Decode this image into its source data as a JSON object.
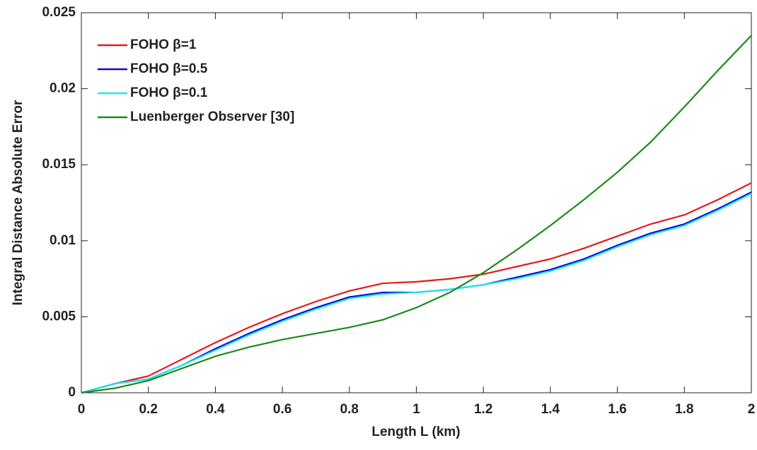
{
  "chart_data": {
    "type": "line",
    "xlabel": "Length L  (km)",
    "ylabel": "Integral Distance Absolute Error",
    "x": [
      0,
      0.1,
      0.2,
      0.3,
      0.4,
      0.5,
      0.6,
      0.7,
      0.8,
      0.9,
      1,
      1.1,
      1.2,
      1.3,
      1.4,
      1.5,
      1.6,
      1.7,
      1.8,
      1.9,
      2
    ],
    "series": [
      {
        "name": "FOHO β=1",
        "color": "#e31a1c",
        "values": [
          0,
          0.0006,
          0.0011,
          0.0022,
          0.0033,
          0.0043,
          0.0052,
          0.006,
          0.0067,
          0.0072,
          0.0073,
          0.0075,
          0.0078,
          0.0083,
          0.0088,
          0.0095,
          0.0103,
          0.0111,
          0.0117,
          0.0127,
          0.0138
        ]
      },
      {
        "name": "FOHO β=0.5",
        "color": "#0a0ad8",
        "values": [
          0,
          0.0006,
          0.0009,
          0.0018,
          0.0029,
          0.0039,
          0.0048,
          0.0056,
          0.0063,
          0.0066,
          0.0066,
          0.0068,
          0.0071,
          0.0076,
          0.0081,
          0.0088,
          0.0097,
          0.0105,
          0.0111,
          0.0121,
          0.0132
        ]
      },
      {
        "name": "FOHO β=0.1",
        "color": "#1ee6f0",
        "values": [
          0,
          0.0006,
          0.0009,
          0.0018,
          0.0028,
          0.0038,
          0.0047,
          0.0055,
          0.0062,
          0.0065,
          0.0066,
          0.0068,
          0.0071,
          0.0075,
          0.008,
          0.0087,
          0.0096,
          0.0104,
          0.011,
          0.012,
          0.0131
        ]
      },
      {
        "name": "Luenberger Observer [30]",
        "color": "#1a8a1a",
        "values": [
          0,
          0.0003,
          0.0008,
          0.0016,
          0.0024,
          0.003,
          0.0035,
          0.0039,
          0.0043,
          0.0048,
          0.0056,
          0.0066,
          0.0079,
          0.0094,
          0.011,
          0.0127,
          0.0145,
          0.0165,
          0.0188,
          0.0212,
          0.0235
        ]
      }
    ],
    "xlim": [
      0,
      2
    ],
    "xticks": [
      0,
      0.2,
      0.4,
      0.6,
      0.8,
      1,
      1.2,
      1.4,
      1.6,
      1.8,
      2
    ],
    "ylim": [
      0,
      0.025
    ],
    "yticks": [
      0,
      0.005,
      0.01,
      0.015,
      0.02,
      0.025
    ],
    "legend": "top-left"
  }
}
